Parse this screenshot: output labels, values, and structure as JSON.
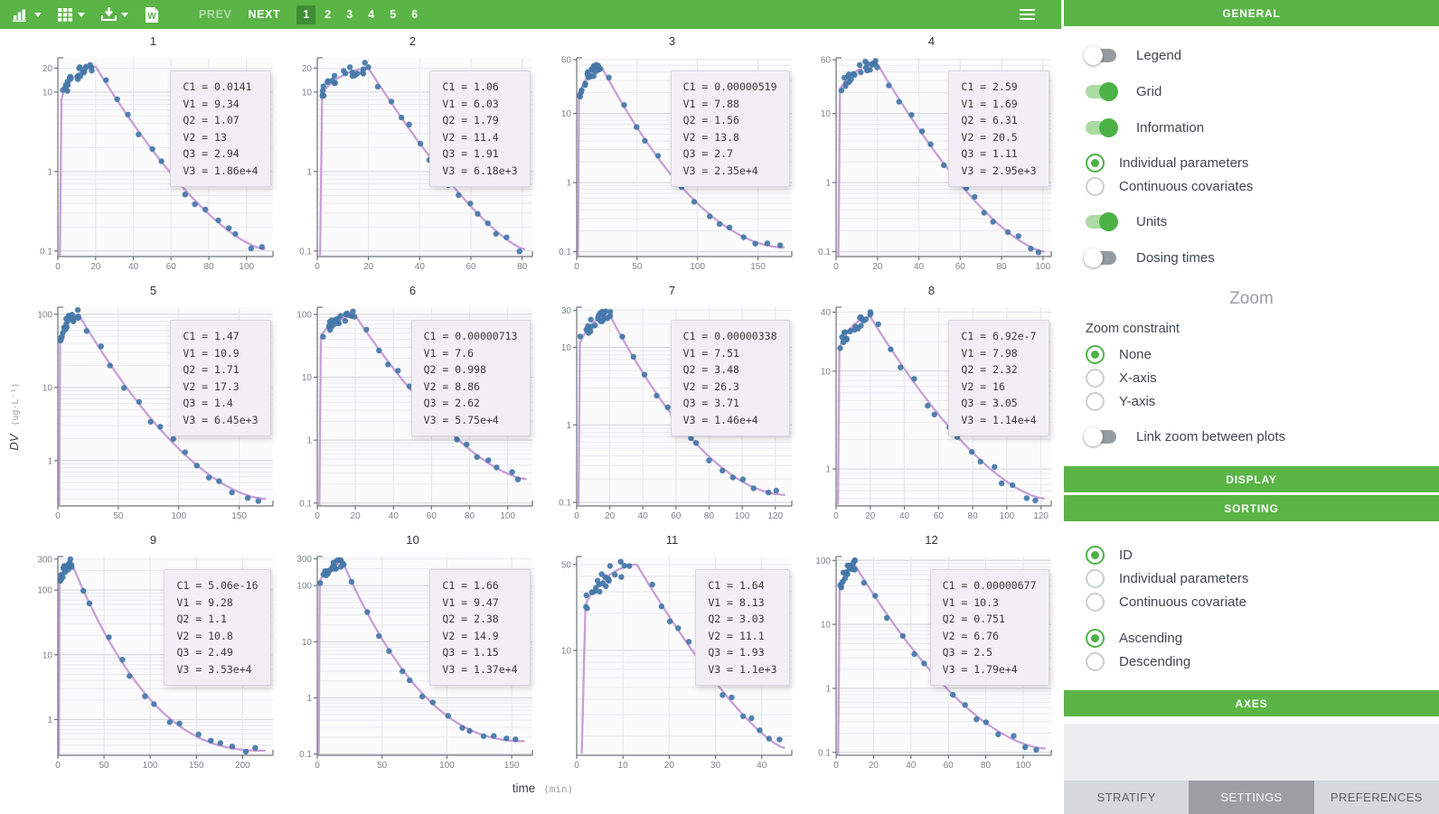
{
  "toolbar": {
    "icons": [
      "chart-type-icon",
      "grid-layout-icon",
      "download-icon",
      "word-export-icon"
    ],
    "prev_label": "PREV",
    "next_label": "NEXT",
    "pages": [
      "1",
      "2",
      "3",
      "4",
      "5",
      "6"
    ],
    "active_page": "1",
    "menu_icon": "hamburger-icon"
  },
  "sidebar": {
    "general_header": "GENERAL",
    "toggles_primary": [
      {
        "label": "Legend",
        "on": false
      },
      {
        "label": "Grid",
        "on": true
      },
      {
        "label": "Information",
        "on": true
      }
    ],
    "info_radios": [
      {
        "label": "Individual parameters",
        "selected": true
      },
      {
        "label": "Continuous covariates",
        "selected": false
      }
    ],
    "toggles_secondary": [
      {
        "label": "Units",
        "on": true
      },
      {
        "label": "Dosing times",
        "on": false
      }
    ],
    "zoom": {
      "title": "Zoom",
      "constraint_label": "Zoom constraint",
      "constraint_options": [
        {
          "label": "None",
          "selected": true
        },
        {
          "label": "X-axis",
          "selected": false
        },
        {
          "label": "Y-axis",
          "selected": false
        }
      ],
      "link_toggle": {
        "label": "Link zoom between plots",
        "on": false
      }
    },
    "display_header": "DISPLAY",
    "sorting_header": "SORTING",
    "sort_by": [
      {
        "label": "ID",
        "selected": true
      },
      {
        "label": "Individual parameters",
        "selected": false
      },
      {
        "label": "Continuous covariate",
        "selected": false
      }
    ],
    "sort_direction": [
      {
        "label": "Ascending",
        "selected": true
      },
      {
        "label": "Descending",
        "selected": false
      }
    ],
    "axes_header": "AXES",
    "footer_tabs": [
      {
        "label": "STRATIFY",
        "active": false
      },
      {
        "label": "SETTINGS",
        "active": true
      },
      {
        "label": "PREFERENCES",
        "active": false
      }
    ]
  },
  "colors": {
    "accent_green": "#5ab446",
    "active_page_green": "#3e8e35",
    "point_blue": "#4577a9",
    "fit_line_purple": "#c295d4",
    "annotation_bg": "#f1eef5"
  },
  "chart_data": {
    "type": "scatter",
    "yscale": "log",
    "grid": true,
    "xlabel": "time",
    "xlabel_units": "(min)",
    "ylabel": "DV",
    "ylabel_units": "(ug·L⁻¹)",
    "plots": [
      {
        "id": "1",
        "params": [
          [
            "C1",
            "0.0141"
          ],
          [
            "V1",
            "9.34"
          ],
          [
            "Q2",
            "1.07"
          ],
          [
            "V2",
            "13"
          ],
          [
            "Q3",
            "2.94"
          ],
          [
            "V3",
            "1.86e+4"
          ]
        ],
        "x_ticks": [
          0,
          20,
          40,
          60,
          80,
          100
        ],
        "x_max": 114,
        "y_ticks": [
          20,
          10,
          1,
          0.1
        ],
        "y_min": 0.085,
        "y_max": 27,
        "curve": {
          "peak": 21,
          "t_peak": 20,
          "end": 0.105,
          "x_end": 110,
          "shape": 1.5,
          "rise_frac": 0.42
        }
      },
      {
        "id": "2",
        "params": [
          [
            "C1",
            "1.06"
          ],
          [
            "V1",
            "6.03"
          ],
          [
            "Q2",
            "1.79"
          ],
          [
            "V2",
            "11.4"
          ],
          [
            "Q3",
            "1.91"
          ],
          [
            "V3",
            "6.18e+3"
          ]
        ],
        "x_ticks": [
          0,
          20,
          40,
          60,
          80
        ],
        "x_max": 84,
        "y_ticks": [
          20,
          10,
          1,
          0.1
        ],
        "y_min": 0.085,
        "y_max": 27,
        "curve": {
          "peak": 20,
          "t_peak": 20,
          "end": 0.105,
          "x_end": 81,
          "shape": 1.35,
          "rise_frac": 0.5
        }
      },
      {
        "id": "3",
        "params": [
          [
            "C1",
            "0.00000519"
          ],
          [
            "V1",
            "7.88"
          ],
          [
            "Q2",
            "1.56"
          ],
          [
            "V2",
            "13.8"
          ],
          [
            "Q3",
            "2.7"
          ],
          [
            "V3",
            "2.35e+4"
          ]
        ],
        "x_ticks": [
          0,
          50,
          100,
          150
        ],
        "x_max": 178,
        "y_ticks": [
          60,
          10,
          1,
          0.1
        ],
        "y_min": 0.085,
        "y_max": 64,
        "curve": {
          "peak": 46,
          "t_peak": 21,
          "end": 0.115,
          "x_end": 172,
          "shape": 1.9,
          "rise_frac": 0.42
        }
      },
      {
        "id": "4",
        "params": [
          [
            "C1",
            "2.59"
          ],
          [
            "V1",
            "1.69"
          ],
          [
            "Q2",
            "6.31"
          ],
          [
            "V2",
            "20.5"
          ],
          [
            "Q3",
            "1.11"
          ],
          [
            "V3",
            "2.95e+3"
          ]
        ],
        "x_ticks": [
          0,
          20,
          40,
          60,
          80,
          100
        ],
        "x_max": 104,
        "y_ticks": [
          60,
          10,
          1,
          0.1
        ],
        "y_min": 0.085,
        "y_max": 64,
        "curve": {
          "peak": 52,
          "t_peak": 20,
          "end": 0.1,
          "x_end": 101,
          "shape": 1.5,
          "rise_frac": 0.45
        }
      },
      {
        "id": "5",
        "params": [
          [
            "C1",
            "1.47"
          ],
          [
            "V1",
            "10.9"
          ],
          [
            "Q2",
            "1.71"
          ],
          [
            "V2",
            "17.3"
          ],
          [
            "Q3",
            "1.4"
          ],
          [
            "V3",
            "6.45e+3"
          ]
        ],
        "x_ticks": [
          0,
          50,
          100,
          150
        ],
        "x_max": 178,
        "y_ticks": [
          100,
          10,
          1
        ],
        "y_min": 0.24,
        "y_max": 125,
        "curve": {
          "peak": 100,
          "t_peak": 17,
          "end": 0.3,
          "x_end": 172,
          "shape": 1.7,
          "rise_frac": 0.5
        }
      },
      {
        "id": "6",
        "params": [
          [
            "C1",
            "0.00000713"
          ],
          [
            "V1",
            "7.6"
          ],
          [
            "Q2",
            "0.998"
          ],
          [
            "V2",
            "8.86"
          ],
          [
            "Q3",
            "2.62"
          ],
          [
            "V3",
            "5.75e+4"
          ]
        ],
        "x_ticks": [
          0,
          20,
          40,
          60,
          80,
          100
        ],
        "x_max": 113,
        "y_ticks": [
          100,
          10,
          1,
          0.1
        ],
        "y_min": 0.09,
        "y_max": 130,
        "curve": {
          "peak": 95,
          "t_peak": 20,
          "end": 0.24,
          "x_end": 110,
          "shape": 1.55,
          "rise_frac": 0.5
        }
      },
      {
        "id": "7",
        "params": [
          [
            "C1",
            "0.00000338"
          ],
          [
            "V1",
            "7.51"
          ],
          [
            "Q2",
            "3.48"
          ],
          [
            "V2",
            "26.3"
          ],
          [
            "Q3",
            "3.71"
          ],
          [
            "V3",
            "1.46e+4"
          ]
        ],
        "x_ticks": [
          0,
          20,
          40,
          60,
          80,
          100,
          120
        ],
        "x_max": 130,
        "y_ticks": [
          30,
          10,
          1,
          0.1
        ],
        "y_min": 0.09,
        "y_max": 33,
        "curve": {
          "peak": 26,
          "t_peak": 20,
          "end": 0.125,
          "x_end": 126,
          "shape": 1.85,
          "rise_frac": 0.45
        }
      },
      {
        "id": "8",
        "params": [
          [
            "C1",
            "6.92e-7"
          ],
          [
            "V1",
            "7.98"
          ],
          [
            "Q2",
            "2.32"
          ],
          [
            "V2",
            "16"
          ],
          [
            "Q3",
            "3.05"
          ],
          [
            "V3",
            "1.14e+4"
          ]
        ],
        "x_ticks": [
          0,
          20,
          40,
          60,
          80,
          100,
          120
        ],
        "x_max": 126,
        "y_ticks": [
          40,
          10,
          1
        ],
        "y_min": 0.42,
        "y_max": 45,
        "curve": {
          "peak": 36,
          "t_peak": 20,
          "end": 0.5,
          "x_end": 122,
          "shape": 1.55,
          "rise_frac": 0.5
        }
      },
      {
        "id": "9",
        "params": [
          [
            "C1",
            "5.06e-16"
          ],
          [
            "V1",
            "9.28"
          ],
          [
            "Q2",
            "1.1"
          ],
          [
            "V2",
            "10.8"
          ],
          [
            "Q3",
            "2.49"
          ],
          [
            "V3",
            "3.53e+4"
          ]
        ],
        "x_ticks": [
          0,
          50,
          100,
          150,
          200
        ],
        "x_max": 233,
        "y_ticks": [
          300,
          100,
          10,
          1
        ],
        "y_min": 0.28,
        "y_max": 330,
        "curve": {
          "peak": 260,
          "t_peak": 15,
          "end": 0.33,
          "x_end": 225,
          "shape": 2.5,
          "rise_frac": 0.5
        }
      },
      {
        "id": "10",
        "params": [
          [
            "C1",
            "1.66"
          ],
          [
            "V1",
            "9.47"
          ],
          [
            "Q2",
            "2.38"
          ],
          [
            "V2",
            "14.9"
          ],
          [
            "Q3",
            "1.15"
          ],
          [
            "V3",
            "1.37e+4"
          ]
        ],
        "x_ticks": [
          0,
          50,
          100,
          150
        ],
        "x_max": 166,
        "y_ticks": [
          300,
          100,
          10,
          1,
          0.1
        ],
        "y_min": 0.095,
        "y_max": 330,
        "curve": {
          "peak": 250,
          "t_peak": 20,
          "end": 0.17,
          "x_end": 160,
          "shape": 2.3,
          "rise_frac": 0.5
        }
      },
      {
        "id": "11",
        "params": [
          [
            "C1",
            "1.64"
          ],
          [
            "V1",
            "8.13"
          ],
          [
            "Q2",
            "3.03"
          ],
          [
            "V2",
            "11.1"
          ],
          [
            "Q3",
            "1.93"
          ],
          [
            "V3",
            "1.1e+3"
          ]
        ],
        "x_ticks": [
          0,
          10,
          20,
          30,
          40
        ],
        "x_max": 46.5,
        "y_ticks": [
          50,
          10
        ],
        "y_min": 1.4,
        "y_max": 58,
        "curve": {
          "peak": 50,
          "t_peak": 13,
          "end": 1.6,
          "x_end": 45,
          "shape": 1.35,
          "rise_frac": 0.5
        }
      },
      {
        "id": "12",
        "params": [
          [
            "C1",
            "0.00000677"
          ],
          [
            "V1",
            "10.3"
          ],
          [
            "Q2",
            "0.751"
          ],
          [
            "V2",
            "6.76"
          ],
          [
            "Q3",
            "2.5"
          ],
          [
            "V3",
            "1.79e+4"
          ]
        ],
        "x_ticks": [
          0,
          20,
          40,
          60,
          80,
          100
        ],
        "x_max": 115,
        "y_ticks": [
          100,
          10,
          1,
          0.1
        ],
        "y_min": 0.09,
        "y_max": 115,
        "curve": {
          "peak": 85,
          "t_peak": 10,
          "end": 0.115,
          "x_end": 112,
          "shape": 1.7,
          "rise_frac": 0.45
        }
      }
    ]
  }
}
